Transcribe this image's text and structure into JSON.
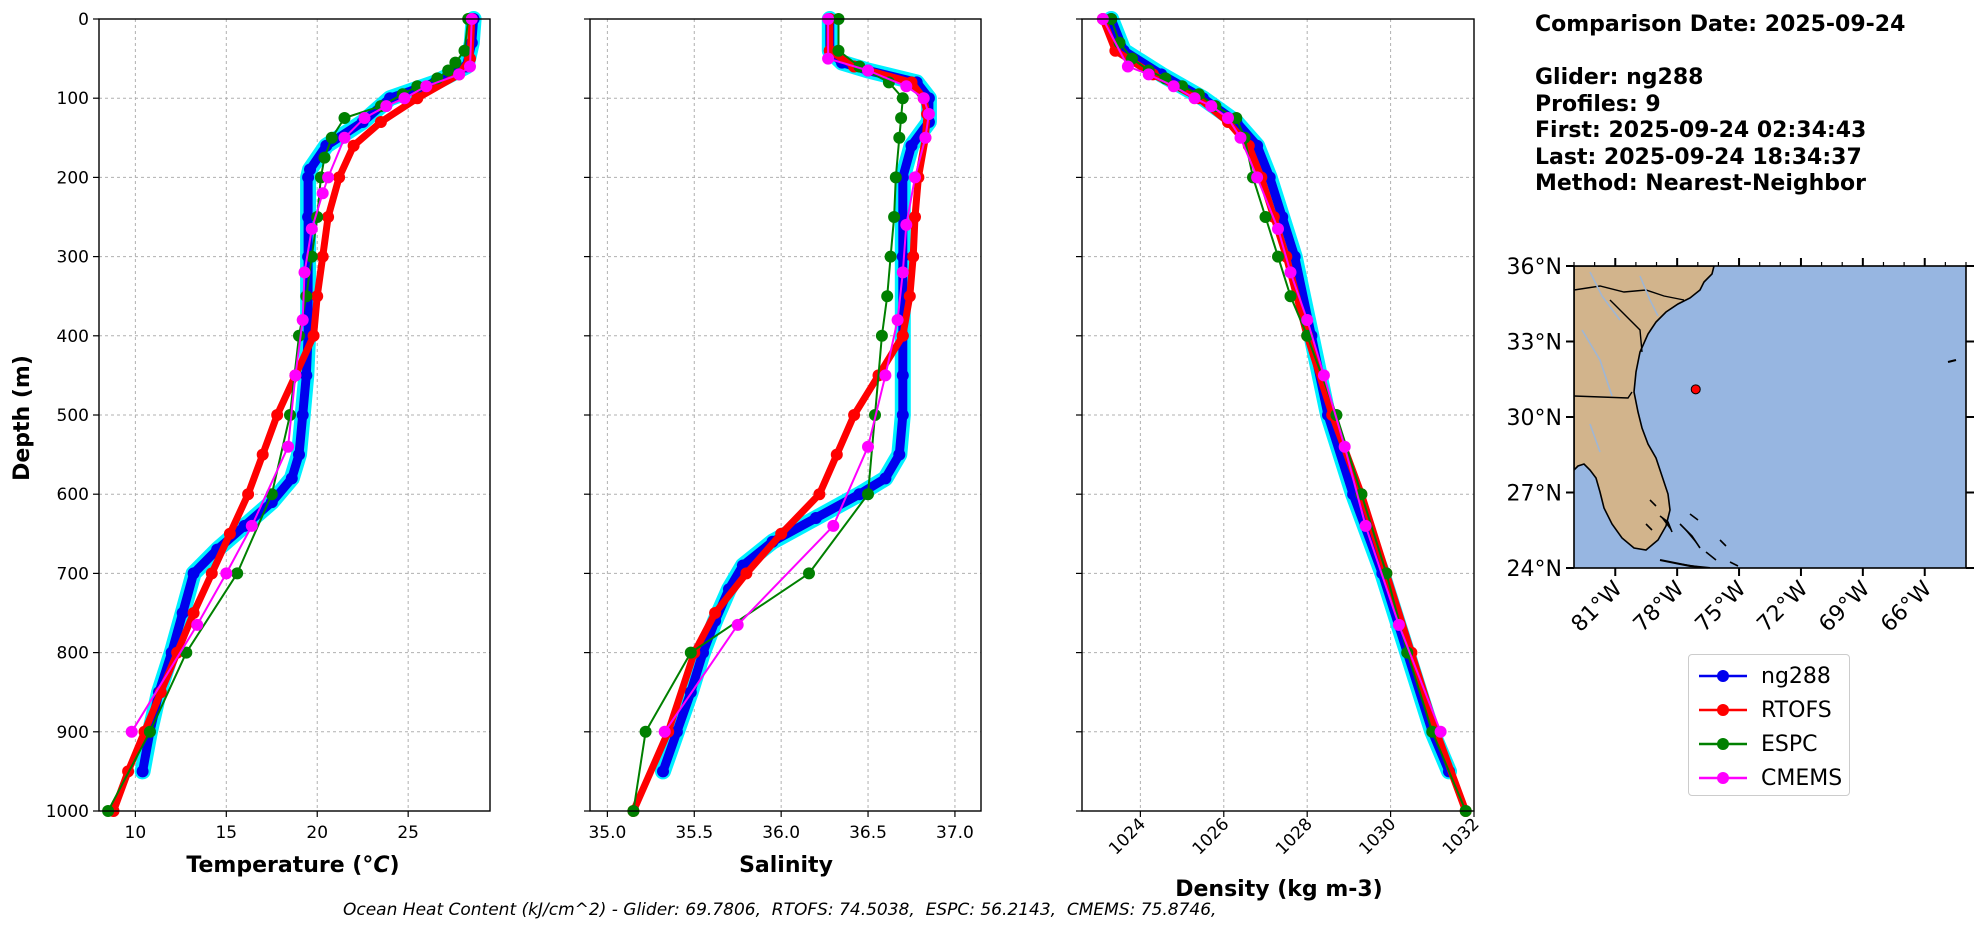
{
  "info": {
    "comparison_date": "Comparison Date: 2025-09-24",
    "glider": "Glider: ng288",
    "profiles": "Profiles: 9",
    "first": "First: 2025-09-24 02:34:43",
    "last": "Last: 2025-09-24 18:34:37",
    "method": "Method: Nearest-Neighbor"
  },
  "footer": "Ocean Heat Content (kJ/cm^2) - Glider: 69.7806,  RTOFS: 74.5038,  ESPC: 56.2143,  CMEMS: 75.8746,",
  "colors": {
    "ng288": "#0000ee",
    "ng288_spread": "#00f0ff",
    "RTOFS": "#ff0000",
    "ESPC": "#008000",
    "CMEMS": "#ff00ff",
    "grid": "#b0b0b0",
    "land": "#d2b48c",
    "ocean": "#97b6e1"
  },
  "legend": [
    {
      "key": "ng288",
      "label": "ng288"
    },
    {
      "key": "RTOFS",
      "label": "RTOFS"
    },
    {
      "key": "ESPC",
      "label": "ESPC"
    },
    {
      "key": "CMEMS",
      "label": "CMEMS"
    }
  ],
  "chart_data": [
    {
      "type": "line",
      "xlabel": "Temperature (°C)",
      "ylabel": "Depth (m)",
      "xlim": [
        8,
        29.5
      ],
      "ylim": [
        1000,
        0
      ],
      "xticks": [
        10,
        15,
        20,
        25
      ],
      "yticks": [
        0,
        100,
        200,
        300,
        400,
        500,
        600,
        700,
        800,
        900,
        1000
      ],
      "grid": true,
      "series": [
        {
          "name": "ng288",
          "depth": [
            0,
            30,
            60,
            80,
            100,
            130,
            160,
            190,
            200,
            250,
            300,
            350,
            400,
            450,
            500,
            550,
            580,
            610,
            640,
            670,
            700,
            750,
            800,
            850,
            900,
            950
          ],
          "values": [
            28.6,
            28.5,
            28.2,
            26.5,
            24.0,
            22.5,
            20.5,
            19.6,
            19.5,
            19.5,
            19.5,
            19.5,
            19.5,
            19.4,
            19.2,
            19.0,
            18.6,
            17.5,
            16.0,
            14.5,
            13.2,
            12.6,
            12.0,
            11.3,
            10.8,
            10.4
          ]
        },
        {
          "name": "RTOFS",
          "depth": [
            0,
            50,
            70,
            100,
            130,
            160,
            200,
            250,
            300,
            350,
            400,
            450,
            500,
            550,
            600,
            650,
            700,
            750,
            800,
            850,
            900,
            950,
            1000
          ],
          "values": [
            28.5,
            28.4,
            27.8,
            25.5,
            23.5,
            22.0,
            21.2,
            20.6,
            20.3,
            20.0,
            19.8,
            18.8,
            17.8,
            17.0,
            16.2,
            15.2,
            14.2,
            13.2,
            12.3,
            11.4,
            10.5,
            9.6,
            8.8
          ]
        },
        {
          "name": "ESPC",
          "depth": [
            0,
            40,
            55,
            65,
            75,
            85,
            95,
            110,
            125,
            150,
            175,
            200,
            250,
            300,
            350,
            400,
            500,
            600,
            700,
            800,
            900,
            1000
          ],
          "values": [
            28.3,
            28.1,
            27.6,
            27.2,
            26.6,
            25.5,
            24.7,
            23.5,
            21.5,
            20.8,
            20.4,
            20.2,
            20.0,
            19.7,
            19.4,
            19.0,
            18.5,
            17.5,
            15.6,
            12.8,
            10.8,
            8.5
          ]
        },
        {
          "name": "CMEMS",
          "depth": [
            0,
            60,
            70,
            85,
            100,
            110,
            125,
            150,
            200,
            220,
            265,
            320,
            380,
            450,
            540,
            640,
            700,
            765,
            900
          ],
          "values": [
            28.5,
            28.4,
            27.8,
            26.0,
            24.8,
            23.8,
            22.6,
            21.5,
            20.6,
            20.3,
            19.7,
            19.3,
            19.2,
            18.8,
            18.4,
            16.4,
            15.0,
            13.4,
            9.8
          ]
        }
      ]
    },
    {
      "type": "line",
      "xlabel": "Salinity",
      "xlim": [
        34.9,
        37.15
      ],
      "ylim": [
        1000,
        0
      ],
      "xticks": [
        35.0,
        35.5,
        36.0,
        36.5,
        37.0
      ],
      "xtick_labels": [
        "35.0",
        "35.5",
        "36.0",
        "36.5",
        "37.0"
      ],
      "grid": true,
      "series": [
        {
          "name": "ng288",
          "depth": [
            0,
            40,
            55,
            65,
            80,
            100,
            130,
            160,
            200,
            300,
            400,
            450,
            500,
            550,
            580,
            600,
            630,
            660,
            690,
            720,
            760,
            800,
            850,
            900,
            950
          ],
          "values": [
            36.28,
            36.28,
            36.35,
            36.5,
            36.78,
            36.85,
            36.85,
            36.75,
            36.7,
            36.7,
            36.7,
            36.7,
            36.7,
            36.68,
            36.6,
            36.45,
            36.2,
            35.95,
            35.78,
            35.7,
            35.62,
            35.55,
            35.48,
            35.4,
            35.32
          ]
        },
        {
          "name": "RTOFS",
          "depth": [
            0,
            40,
            60,
            80,
            100,
            120,
            150,
            200,
            250,
            300,
            350,
            400,
            450,
            500,
            550,
            600,
            650,
            700,
            750,
            800,
            900,
            1000
          ],
          "values": [
            36.28,
            36.28,
            36.42,
            36.75,
            36.82,
            36.84,
            36.83,
            36.79,
            36.77,
            36.76,
            36.74,
            36.7,
            36.56,
            36.42,
            36.32,
            36.22,
            36.0,
            35.8,
            35.62,
            35.5,
            35.35,
            35.15
          ]
        },
        {
          "name": "ESPC",
          "depth": [
            0,
            40,
            60,
            80,
            100,
            125,
            150,
            200,
            250,
            300,
            350,
            400,
            500,
            600,
            700,
            800,
            900,
            1000
          ],
          "values": [
            36.33,
            36.33,
            36.45,
            36.62,
            36.7,
            36.69,
            36.68,
            36.66,
            36.65,
            36.63,
            36.61,
            36.58,
            36.54,
            36.5,
            36.16,
            35.48,
            35.22,
            35.15
          ]
        },
        {
          "name": "CMEMS",
          "depth": [
            0,
            50,
            65,
            85,
            100,
            120,
            150,
            200,
            260,
            320,
            380,
            450,
            540,
            640,
            765,
            900
          ],
          "values": [
            36.27,
            36.27,
            36.5,
            36.72,
            36.82,
            36.85,
            36.83,
            36.77,
            36.72,
            36.7,
            36.67,
            36.6,
            36.5,
            36.3,
            35.75,
            35.33
          ]
        }
      ]
    },
    {
      "type": "line",
      "xlabel": "Density (kg m-3)",
      "xlim": [
        1022.6,
        1032.0
      ],
      "ylim": [
        1000,
        0
      ],
      "xticks": [
        1024,
        1026,
        1028,
        1030,
        1032
      ],
      "grid": true,
      "series": [
        {
          "name": "ng288",
          "depth": [
            0,
            40,
            70,
            100,
            130,
            160,
            200,
            250,
            300,
            400,
            500,
            600,
            700,
            800,
            900,
            950
          ],
          "values": [
            1023.3,
            1023.6,
            1024.5,
            1025.5,
            1026.3,
            1026.8,
            1027.1,
            1027.4,
            1027.7,
            1028.1,
            1028.5,
            1029.1,
            1029.8,
            1030.4,
            1031.0,
            1031.4
          ]
        },
        {
          "name": "RTOFS",
          "depth": [
            0,
            40,
            70,
            100,
            130,
            160,
            200,
            250,
            300,
            400,
            500,
            600,
            700,
            800,
            900,
            1000
          ],
          "values": [
            1023.1,
            1023.4,
            1024.3,
            1025.4,
            1026.1,
            1026.6,
            1026.9,
            1027.2,
            1027.5,
            1028.0,
            1028.6,
            1029.3,
            1029.9,
            1030.5,
            1031.1,
            1031.8
          ]
        },
        {
          "name": "ESPC",
          "depth": [
            0,
            30,
            50,
            65,
            75,
            85,
            95,
            110,
            125,
            150,
            200,
            250,
            300,
            350,
            400,
            500,
            600,
            700,
            800,
            900,
            1000
          ],
          "values": [
            1023.3,
            1023.5,
            1023.8,
            1024.2,
            1024.6,
            1025.0,
            1025.4,
            1025.8,
            1026.3,
            1026.5,
            1026.7,
            1027.0,
            1027.3,
            1027.6,
            1028.0,
            1028.7,
            1029.3,
            1029.9,
            1030.4,
            1031.0,
            1031.8
          ]
        },
        {
          "name": "CMEMS",
          "depth": [
            0,
            60,
            70,
            85,
            100,
            110,
            125,
            150,
            200,
            265,
            320,
            380,
            450,
            540,
            640,
            765,
            900
          ],
          "values": [
            1023.1,
            1023.7,
            1024.2,
            1024.8,
            1025.3,
            1025.7,
            1026.1,
            1026.4,
            1026.8,
            1027.3,
            1027.6,
            1028.0,
            1028.4,
            1028.9,
            1029.4,
            1030.2,
            1031.2
          ]
        }
      ]
    }
  ],
  "map": {
    "lat_range": [
      24,
      36
    ],
    "lon_range": [
      -83,
      -64
    ],
    "lat_ticks": [
      "36°N",
      "33°N",
      "30°N",
      "27°N",
      "24°N"
    ],
    "lon_ticks": [
      "81°W",
      "78°W",
      "75°W",
      "72°W",
      "69°W",
      "66°W"
    ],
    "glider_position": {
      "lat": 31.1,
      "lon": -77.1
    }
  }
}
